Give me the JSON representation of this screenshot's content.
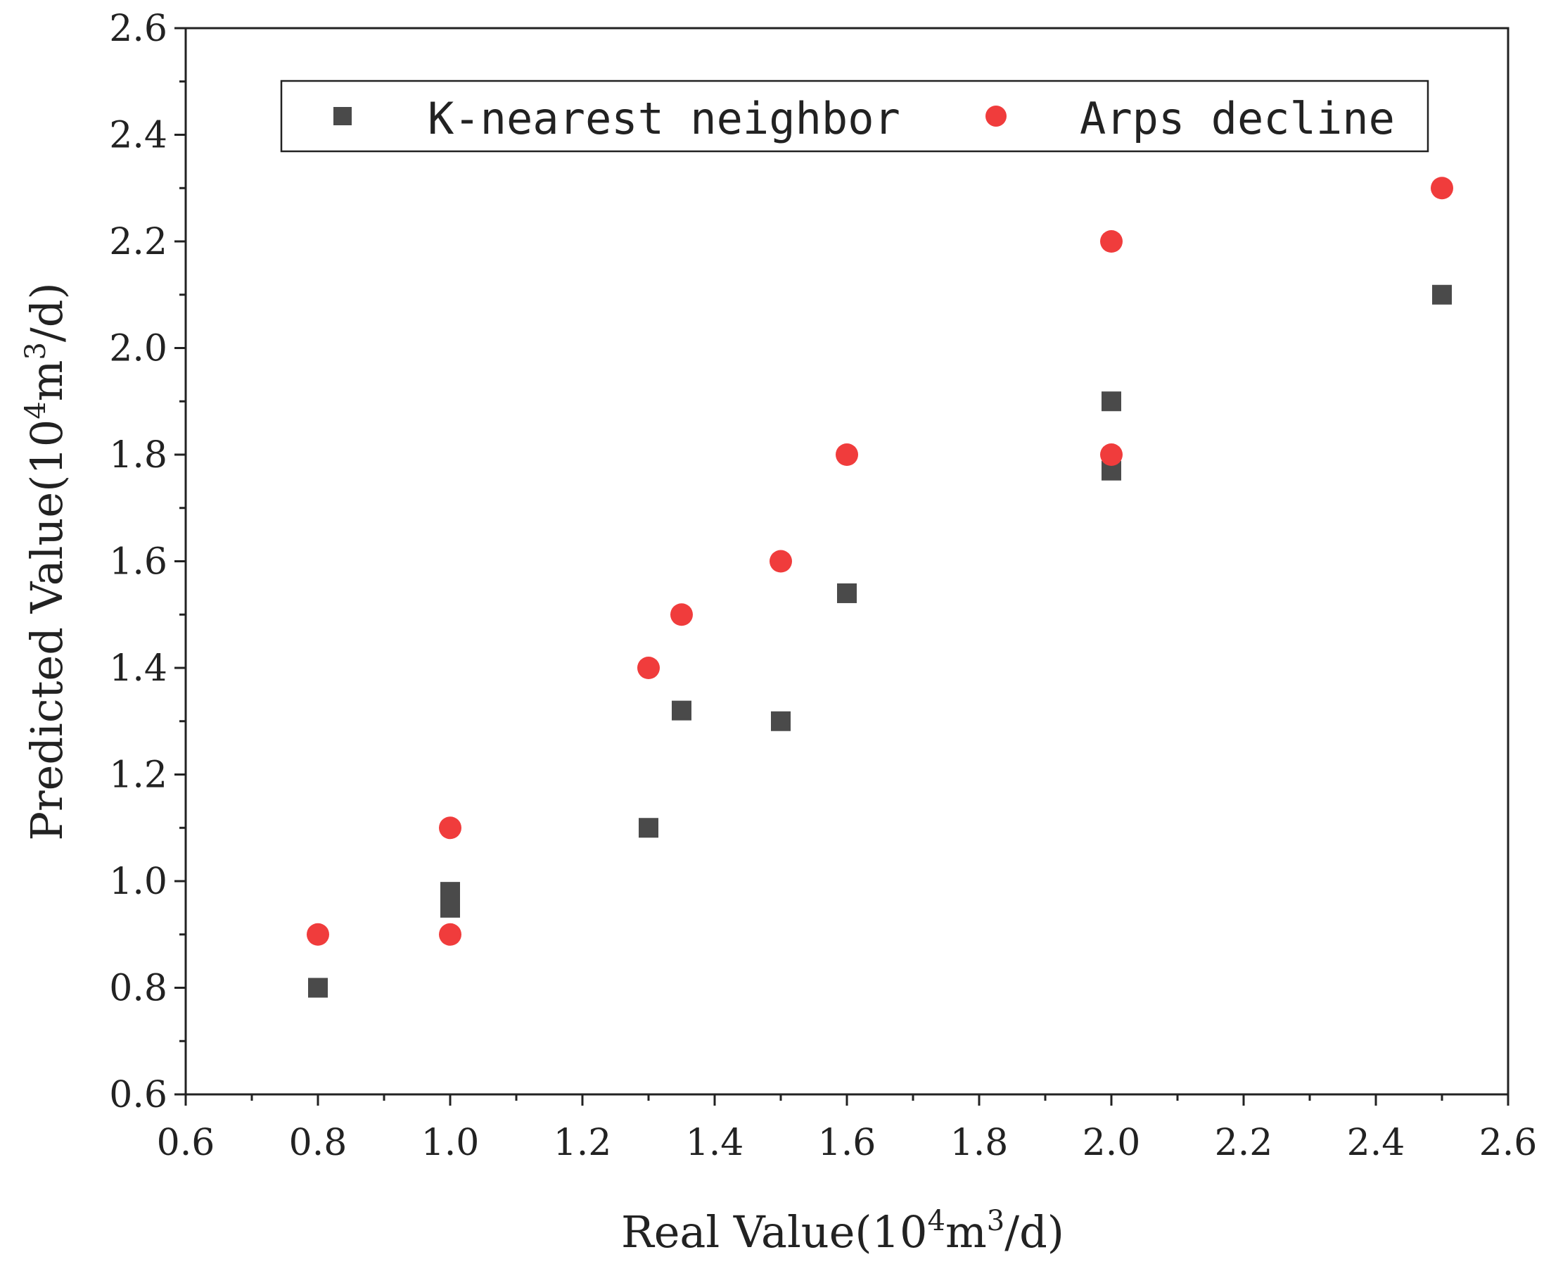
{
  "chart_data": {
    "type": "scatter",
    "title": "",
    "xlabel": "Real Value(10",
    "xlabel_unit": {
      "sup1": "4",
      "mid": "m",
      "sup2": "3",
      "tail": "/d)"
    },
    "ylabel": "Predicted Value(10",
    "ylabel_unit": {
      "sup1": "4",
      "mid": "m",
      "sup2": "3",
      "tail": "/d)"
    },
    "xlim": [
      0.6,
      2.6
    ],
    "ylim": [
      0.6,
      2.6
    ],
    "xticks": [
      "0.6",
      "0.8",
      "1.0",
      "1.2",
      "1.4",
      "1.6",
      "1.8",
      "2.0",
      "2.2",
      "2.4",
      "2.6"
    ],
    "yticks": [
      "0.6",
      "0.8",
      "1.0",
      "1.2",
      "1.4",
      "1.6",
      "1.8",
      "2.0",
      "2.2",
      "2.4",
      "2.6"
    ],
    "legend_position": "top",
    "series": [
      {
        "name": "K-nearest neighbor",
        "marker": "square",
        "color": "#4a4a4a",
        "points": [
          {
            "x": 0.8,
            "y": 0.8
          },
          {
            "x": 1.0,
            "y": 0.98
          },
          {
            "x": 1.0,
            "y": 0.95
          },
          {
            "x": 1.3,
            "y": 1.1
          },
          {
            "x": 1.35,
            "y": 1.32
          },
          {
            "x": 1.5,
            "y": 1.3
          },
          {
            "x": 1.6,
            "y": 1.54
          },
          {
            "x": 2.0,
            "y": 1.9
          },
          {
            "x": 2.0,
            "y": 1.77
          },
          {
            "x": 2.5,
            "y": 2.1
          }
        ]
      },
      {
        "name": "Arps decline",
        "marker": "circle",
        "color": "#f03c3c",
        "points": [
          {
            "x": 0.8,
            "y": 0.9
          },
          {
            "x": 1.0,
            "y": 1.1
          },
          {
            "x": 1.0,
            "y": 0.9
          },
          {
            "x": 1.3,
            "y": 1.4
          },
          {
            "x": 1.35,
            "y": 1.5
          },
          {
            "x": 1.5,
            "y": 1.6
          },
          {
            "x": 1.6,
            "y": 1.8
          },
          {
            "x": 2.0,
            "y": 2.2
          },
          {
            "x": 2.0,
            "y": 1.8
          },
          {
            "x": 2.5,
            "y": 2.3
          }
        ]
      }
    ]
  }
}
